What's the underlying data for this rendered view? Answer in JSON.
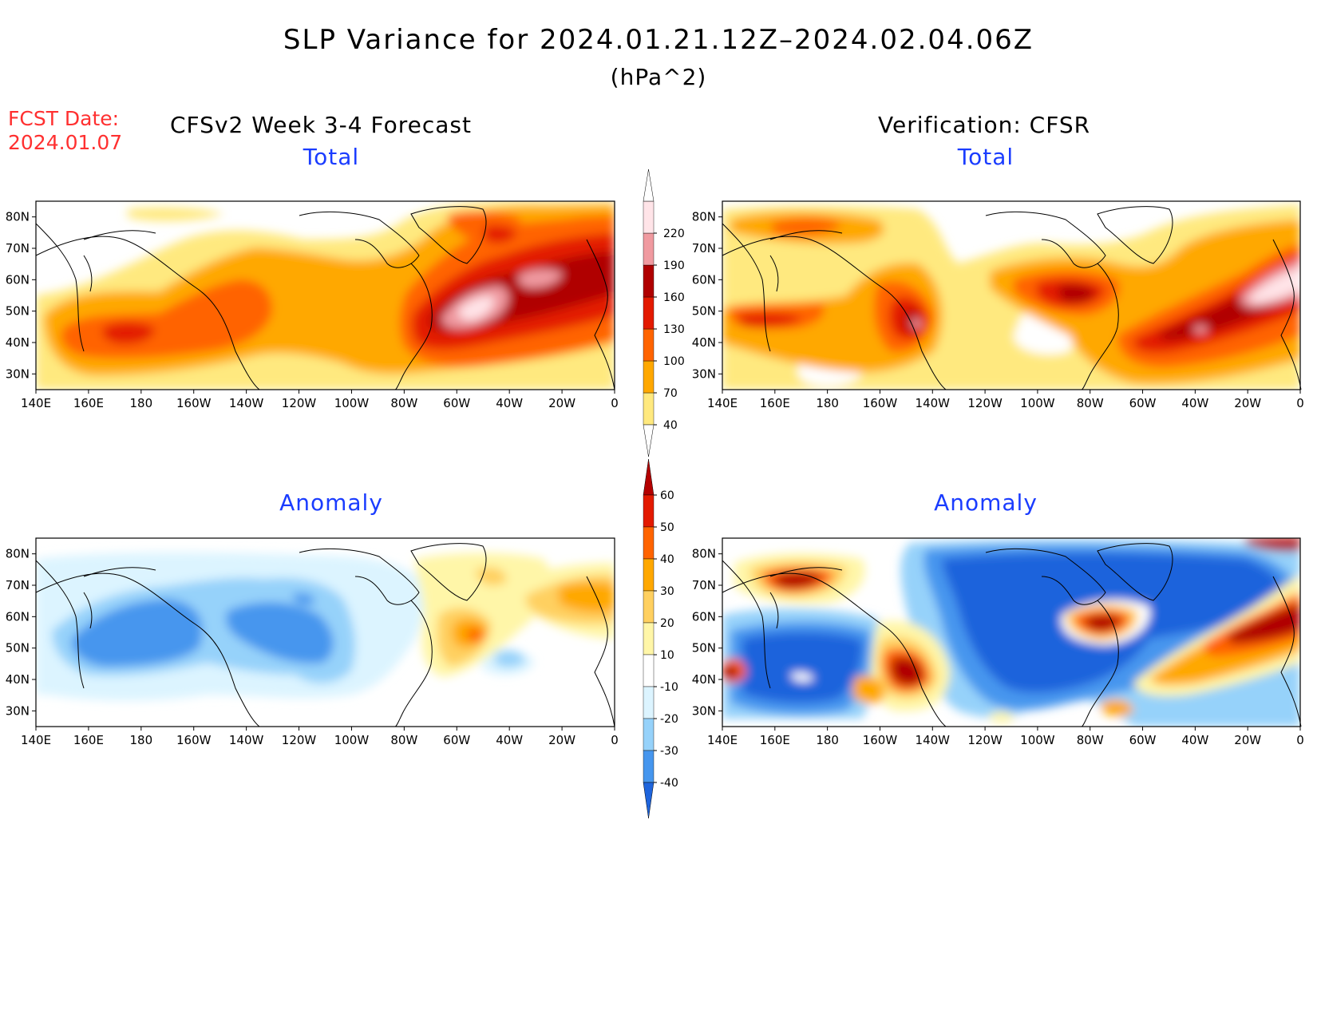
{
  "title": "SLP Variance for 2024.01.21.12Z–2024.02.04.06Z",
  "units": "(hPa^2)",
  "fcst_date_label": "FCST Date:",
  "fcst_date_value": "2024.01.07",
  "left_heading": "CFSv2 Week 3-4 Forecast",
  "right_heading": "Verification: CFSR",
  "panels": [
    {
      "title": "Total"
    },
    {
      "title": "Total"
    },
    {
      "title": "Anomaly"
    },
    {
      "title": "Anomaly"
    }
  ],
  "lat_ticks": [
    "80N",
    "70N",
    "60N",
    "50N",
    "40N",
    "30N"
  ],
  "lon_ticks": [
    "140E",
    "160E",
    "180",
    "160W",
    "140W",
    "120W",
    "100W",
    "80W",
    "60W",
    "40W",
    "20W",
    "0"
  ],
  "total_colorbar": {
    "levels": [
      "40",
      "70",
      "100",
      "130",
      "160",
      "190",
      "220"
    ],
    "colors": [
      "#ffe97f",
      "#ffa800",
      "#ff6400",
      "#e31a00",
      "#b00000",
      "#f09aa0",
      "#ffe4e8"
    ]
  },
  "anomaly_colorbar": {
    "levels": [
      "60",
      "50",
      "40",
      "30",
      "20",
      "10",
      "-10",
      "-20",
      "-30",
      "-40"
    ],
    "colors": [
      "#b40000",
      "#e31a00",
      "#ff6400",
      "#ffa800",
      "#ffd060",
      "#fff6a8",
      "#ffffff",
      "#dcf4ff",
      "#96d2fa",
      "#4696ee",
      "#1e64dc"
    ]
  }
}
